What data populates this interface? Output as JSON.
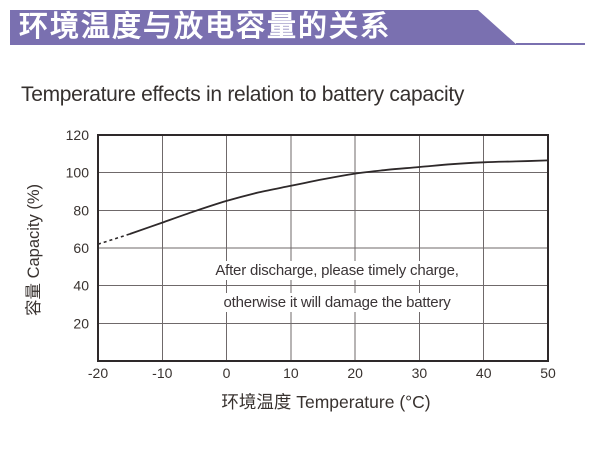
{
  "header": {
    "banner_text": "环境温度与放电容量的关系"
  },
  "colors": {
    "banner": "#7a70b0",
    "axis": "#2e292a",
    "grid": "#6f696a",
    "text": "#38322f",
    "curve": "#2e292a"
  },
  "chart_data": {
    "type": "line",
    "title": "Temperature effects in relation to battery capacity",
    "xlabel": "环境温度 Temperature (°C)",
    "ylabel": "容量 Capacity (%)",
    "xlim": [
      -20,
      50
    ],
    "ylim": [
      0,
      120
    ],
    "x_ticks": [
      -20,
      -10,
      0,
      10,
      20,
      30,
      40,
      50
    ],
    "y_ticks": [
      20,
      40,
      60,
      80,
      100,
      120
    ],
    "grid": true,
    "legend": false,
    "annotations": [
      "After discharge, please timely charge,",
      "otherwise it will damage the battery"
    ],
    "series": [
      {
        "name": "capacity-vs-temperature",
        "dashed_until_x": -15,
        "x": [
          -20,
          -15,
          -10,
          -5,
          0,
          5,
          10,
          15,
          20,
          25,
          30,
          35,
          40,
          45,
          50
        ],
        "y": [
          62,
          67.5,
          73.5,
          79.5,
          85,
          89.5,
          93,
          96.5,
          99.5,
          101.5,
          103,
          104.5,
          105.5,
          106,
          106.5
        ]
      }
    ]
  }
}
